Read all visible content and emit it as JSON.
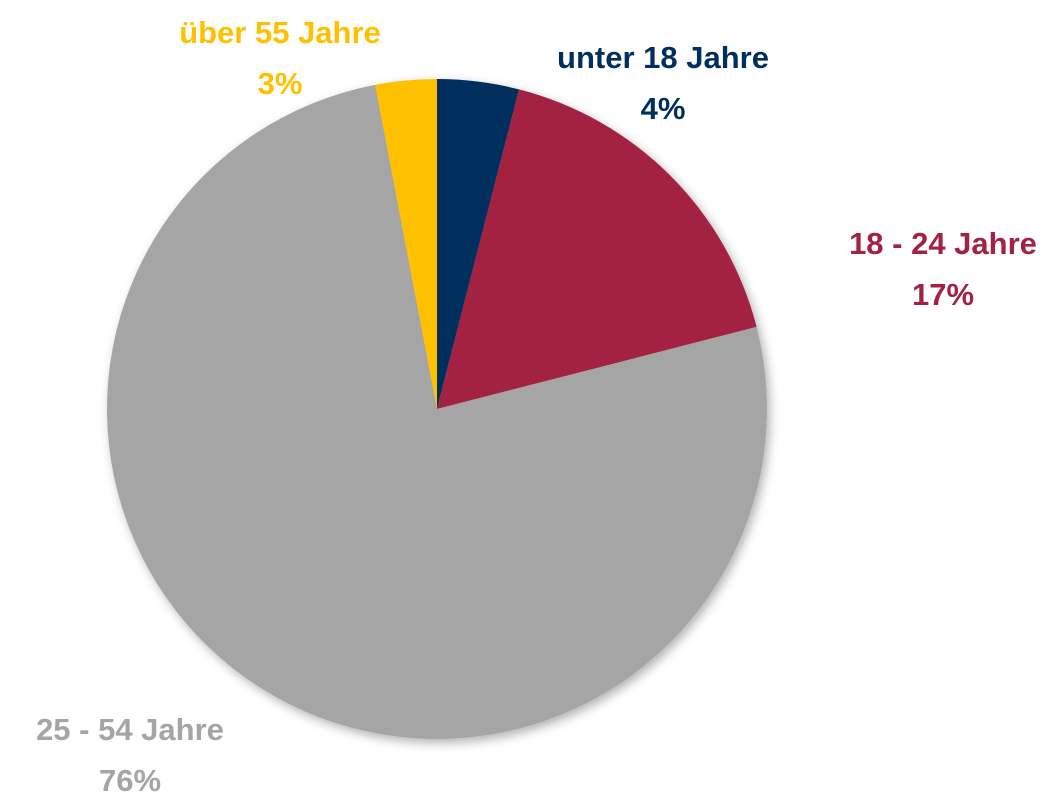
{
  "chart_data": {
    "type": "pie",
    "categories": [
      "unter 18 Jahre",
      "18 - 24 Jahre",
      "25 - 54 Jahre",
      "über 55 Jahre"
    ],
    "values": [
      4,
      17,
      76,
      3
    ],
    "value_labels": [
      "4%",
      "17%",
      "76%",
      "3%"
    ],
    "colors": [
      "#002f5d",
      "#a32142",
      "#a5a5a5",
      "#ffc000"
    ]
  }
}
